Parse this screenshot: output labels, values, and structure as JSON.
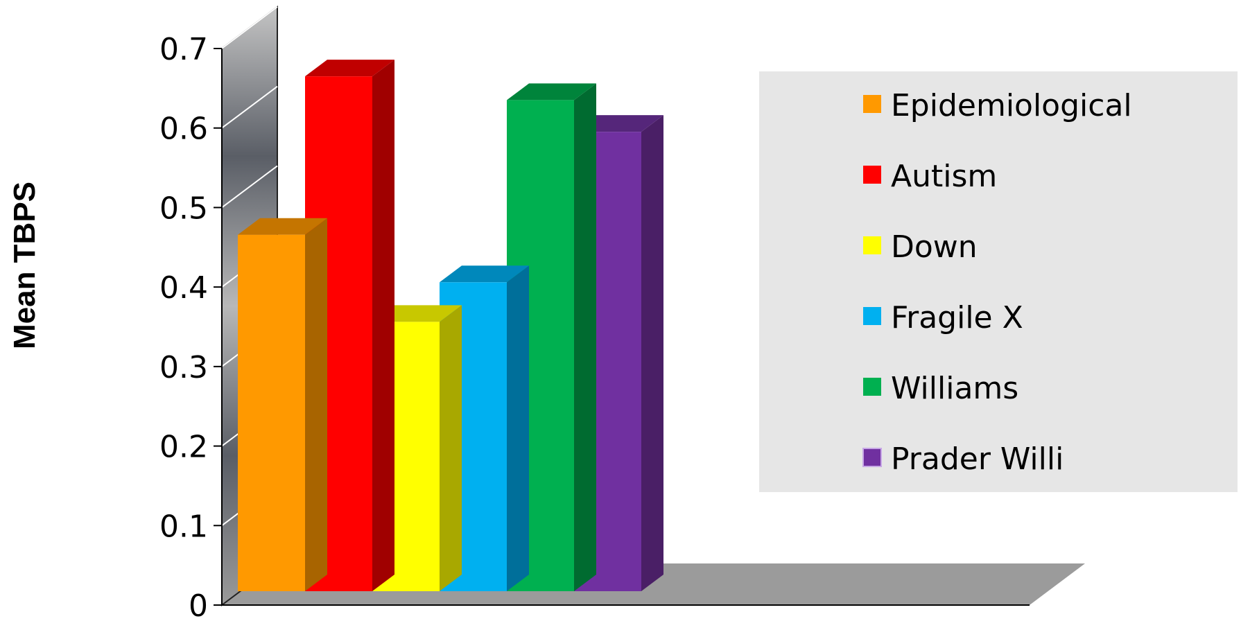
{
  "chart_data": {
    "type": "bar",
    "title": "",
    "xlabel": "",
    "ylabel": "Mean TBPS",
    "ylim": [
      0,
      0.7
    ],
    "yticks": [
      "0",
      "0.1",
      "0.2",
      "0.3",
      "0.4",
      "0.5",
      "0.6",
      "0.7"
    ],
    "legend_position": "right",
    "series": [
      {
        "name": "Epidemiological",
        "value": 0.45,
        "color": "#FF9900",
        "top_color": "#C57500",
        "side_color": "#A86400"
      },
      {
        "name": "Autism",
        "value": 0.65,
        "color": "#FF0000",
        "top_color": "#C00000",
        "side_color": "#A00000"
      },
      {
        "name": "Down",
        "value": 0.34,
        "color": "#FFFF00",
        "top_color": "#C8C800",
        "side_color": "#A8A800"
      },
      {
        "name": "Fragile X",
        "value": 0.39,
        "color": "#00B0F0",
        "top_color": "#0088BB",
        "side_color": "#006F9A"
      },
      {
        "name": "Williams",
        "value": 0.62,
        "color": "#00B050",
        "top_color": "#00843B",
        "side_color": "#006B30"
      },
      {
        "name": "Prader Willi",
        "value": 0.58,
        "color": "#7030A0",
        "top_color": "#55267A",
        "side_color": "#4A1F66"
      }
    ]
  }
}
